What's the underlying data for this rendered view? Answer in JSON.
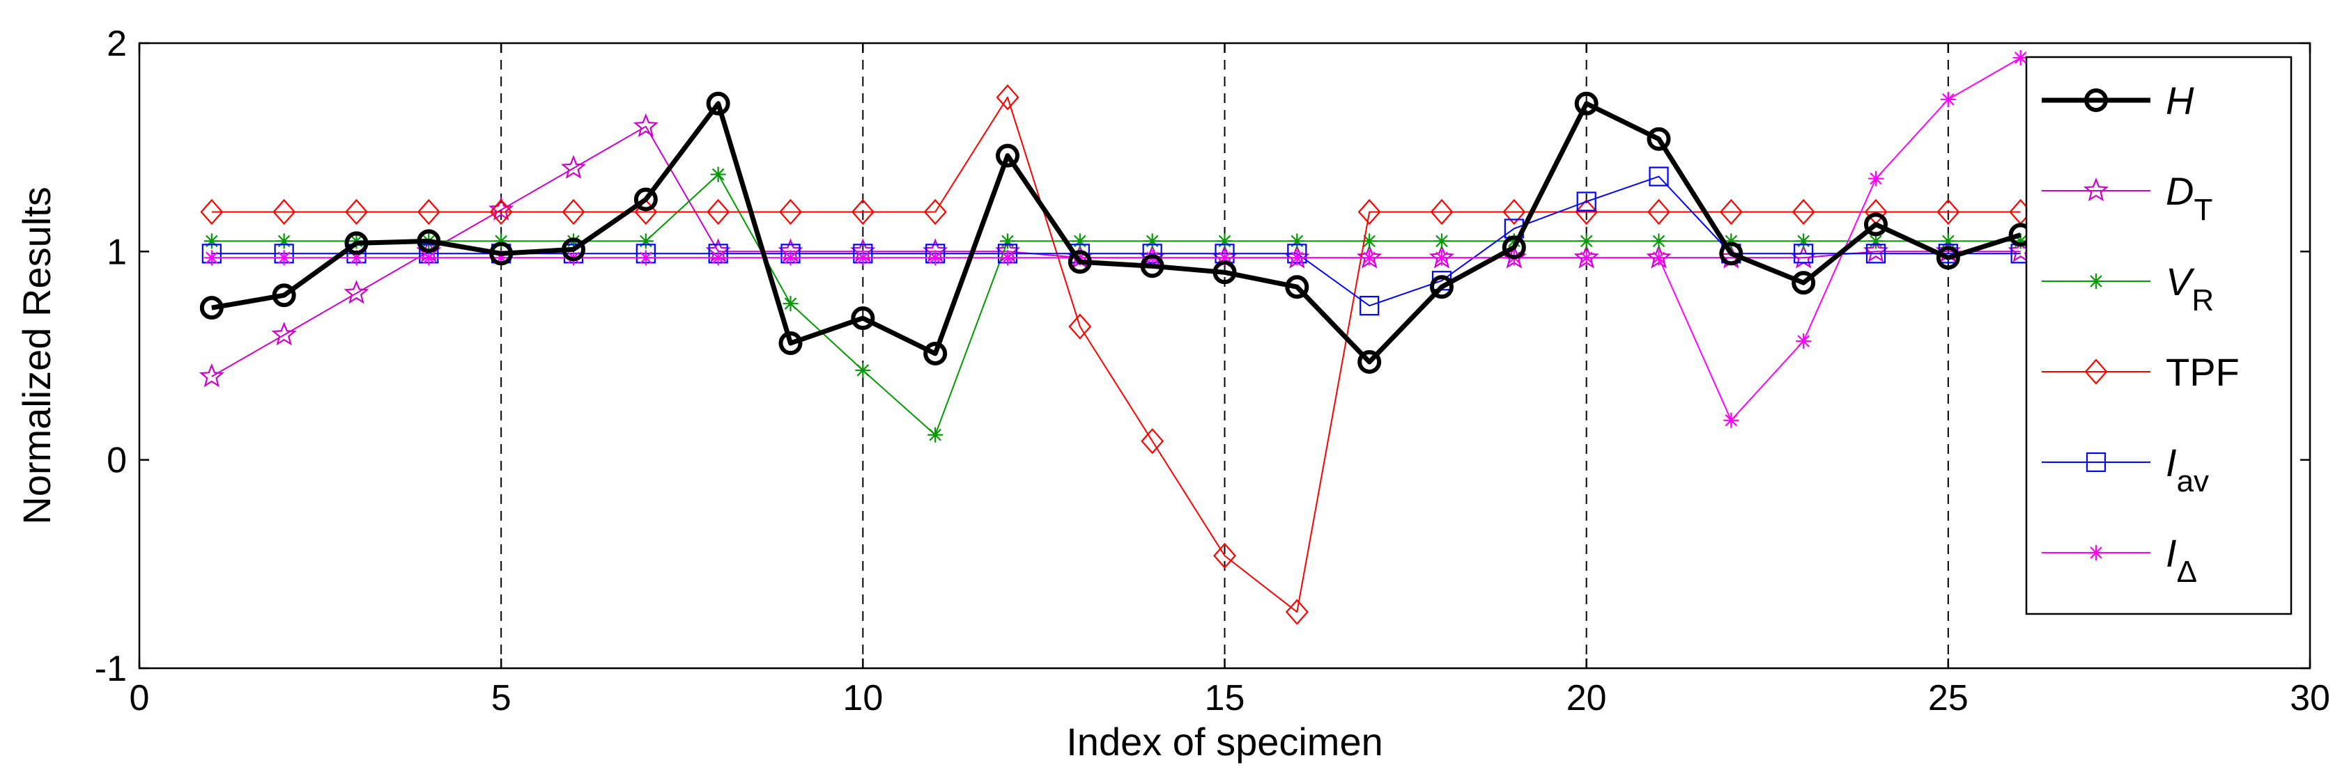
{
  "chart_data": {
    "type": "line",
    "title": "",
    "xlabel": "Index of specimen",
    "ylabel": "Normalized Results",
    "xlim": [
      0,
      30
    ],
    "ylim": [
      -1,
      2
    ],
    "xticks": [
      0,
      5,
      10,
      15,
      20,
      25,
      30
    ],
    "yticks": [
      -1,
      0,
      1,
      2
    ],
    "xtick_labels": [
      "0",
      "5",
      "10",
      "15",
      "20",
      "25",
      "30"
    ],
    "ytick_labels": [
      "-1",
      "0",
      "1",
      "2"
    ],
    "vertical_dashed_lines": [
      5,
      10,
      15,
      20,
      25
    ],
    "legend_position": "right",
    "x": [
      1,
      2,
      3,
      4,
      5,
      6,
      7,
      8,
      9,
      10,
      11,
      12,
      13,
      14,
      15,
      16,
      17,
      18,
      19,
      20,
      21,
      22,
      23,
      24,
      25,
      26
    ],
    "series": [
      {
        "name": "H",
        "legend_main": "H",
        "legend_sub": "",
        "color": "#000000",
        "marker": "circle",
        "line_weight": "bold",
        "values": [
          0.73,
          0.79,
          1.04,
          1.05,
          0.99,
          1.01,
          1.25,
          1.71,
          0.56,
          0.68,
          0.51,
          1.46,
          0.95,
          0.93,
          0.9,
          0.83,
          0.47,
          0.83,
          1.02,
          1.71,
          1.54,
          0.99,
          0.85,
          1.13,
          0.97,
          1.08
        ]
      },
      {
        "name": "D_T",
        "legend_main": "D",
        "legend_sub": "T",
        "color": "#cc00cc",
        "marker": "star",
        "line_weight": "thin",
        "values": [
          0.4,
          0.6,
          0.8,
          1.0,
          1.2,
          1.4,
          1.6,
          1.0,
          1.0,
          1.0,
          1.0,
          1.0,
          0.97,
          0.97,
          0.97,
          0.97,
          0.97,
          0.97,
          0.97,
          0.97,
          0.97,
          0.97,
          0.97,
          1.0,
          1.0,
          1.0
        ]
      },
      {
        "name": "V_R",
        "legend_main": "V",
        "legend_sub": "R",
        "color": "#009900",
        "marker": "asterisk",
        "line_weight": "thin",
        "values": [
          1.05,
          1.05,
          1.05,
          1.05,
          1.05,
          1.05,
          1.05,
          1.37,
          0.75,
          0.43,
          0.12,
          1.05,
          1.05,
          1.05,
          1.05,
          1.05,
          1.05,
          1.05,
          1.05,
          1.05,
          1.05,
          1.05,
          1.05,
          1.05,
          1.05,
          1.05
        ]
      },
      {
        "name": "TPF",
        "legend_main": "TPF",
        "legend_sub": "",
        "color": "#ff0000",
        "marker": "diamond",
        "line_weight": "thin",
        "values": [
          1.19,
          1.19,
          1.19,
          1.19,
          1.19,
          1.19,
          1.19,
          1.19,
          1.19,
          1.19,
          1.19,
          1.74,
          0.64,
          0.09,
          -0.46,
          -0.73,
          1.19,
          1.19,
          1.19,
          1.19,
          1.19,
          1.19,
          1.19,
          1.19,
          1.19,
          1.19
        ]
      },
      {
        "name": "I_av",
        "legend_main": "I",
        "legend_sub": "av",
        "color": "#0000ff",
        "marker": "square",
        "line_weight": "thin",
        "values": [
          0.99,
          0.99,
          0.99,
          0.99,
          0.99,
          0.99,
          0.99,
          0.99,
          0.99,
          0.99,
          0.99,
          0.99,
          0.99,
          0.99,
          0.99,
          0.99,
          0.74,
          0.86,
          1.11,
          1.24,
          1.36,
          0.99,
          0.99,
          0.99,
          0.99,
          0.99
        ]
      },
      {
        "name": "I_Δ",
        "legend_main": "I",
        "legend_sub": "Δ",
        "color": "#ff00ff",
        "marker": "asterisk",
        "line_weight": "thin",
        "values": [
          0.97,
          0.97,
          0.97,
          0.97,
          0.97,
          0.97,
          0.97,
          0.97,
          0.97,
          0.97,
          0.97,
          0.97,
          0.97,
          0.97,
          0.97,
          0.97,
          0.97,
          0.97,
          0.97,
          0.97,
          0.97,
          0.19,
          0.57,
          1.35,
          1.73,
          1.93
        ]
      }
    ]
  }
}
